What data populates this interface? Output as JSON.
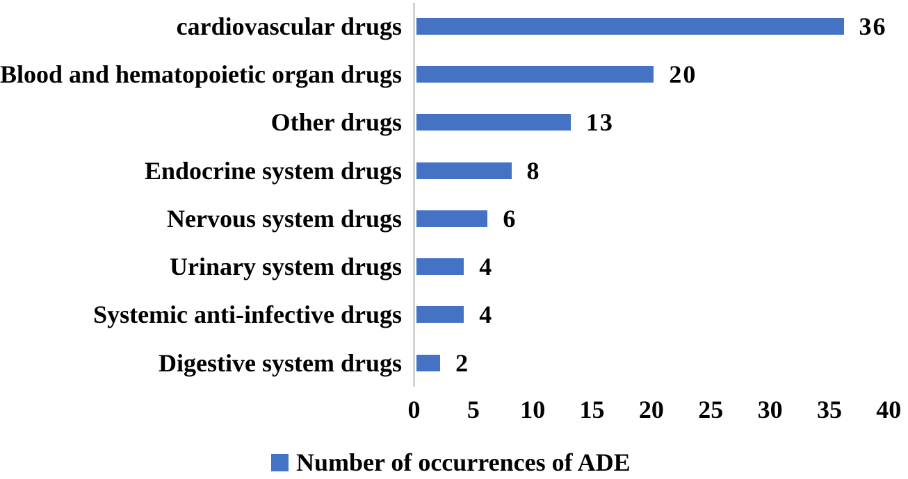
{
  "chart_data": {
    "type": "bar",
    "orientation": "horizontal",
    "title": "",
    "xlabel": "",
    "ylabel": "",
    "categories": [
      "cardiovascular drugs",
      "Blood and hematopoietic organ drugs",
      "Other drugs",
      "Endocrine system drugs",
      "Nervous system drugs",
      "Urinary system drugs",
      "Systemic anti-infective drugs",
      "Digestive system drugs"
    ],
    "values": [
      36,
      20,
      13,
      8,
      6,
      4,
      4,
      2
    ],
    "data_labels": [
      "36",
      "20",
      "13",
      "8",
      "6",
      "4",
      "4",
      "2"
    ],
    "x_ticks": [
      "0",
      "5",
      "10",
      "15",
      "20",
      "25",
      "30",
      "35",
      "40"
    ],
    "x_tick_values": [
      0,
      5,
      10,
      15,
      20,
      25,
      30,
      35,
      40
    ],
    "xlim": [
      0,
      40
    ],
    "grid": false,
    "legend_position": "bottom",
    "series": [
      {
        "name": "Number of occurrences of ADE",
        "values": [
          36,
          20,
          13,
          8,
          6,
          4,
          4,
          2
        ]
      }
    ],
    "colors": {
      "bar": "#4472c4",
      "axis_line": "#d2d2d2",
      "text": "#000000"
    }
  },
  "legend": {
    "label": "Number of occurrences of ADE",
    "swatch_color": "#4472c4"
  }
}
